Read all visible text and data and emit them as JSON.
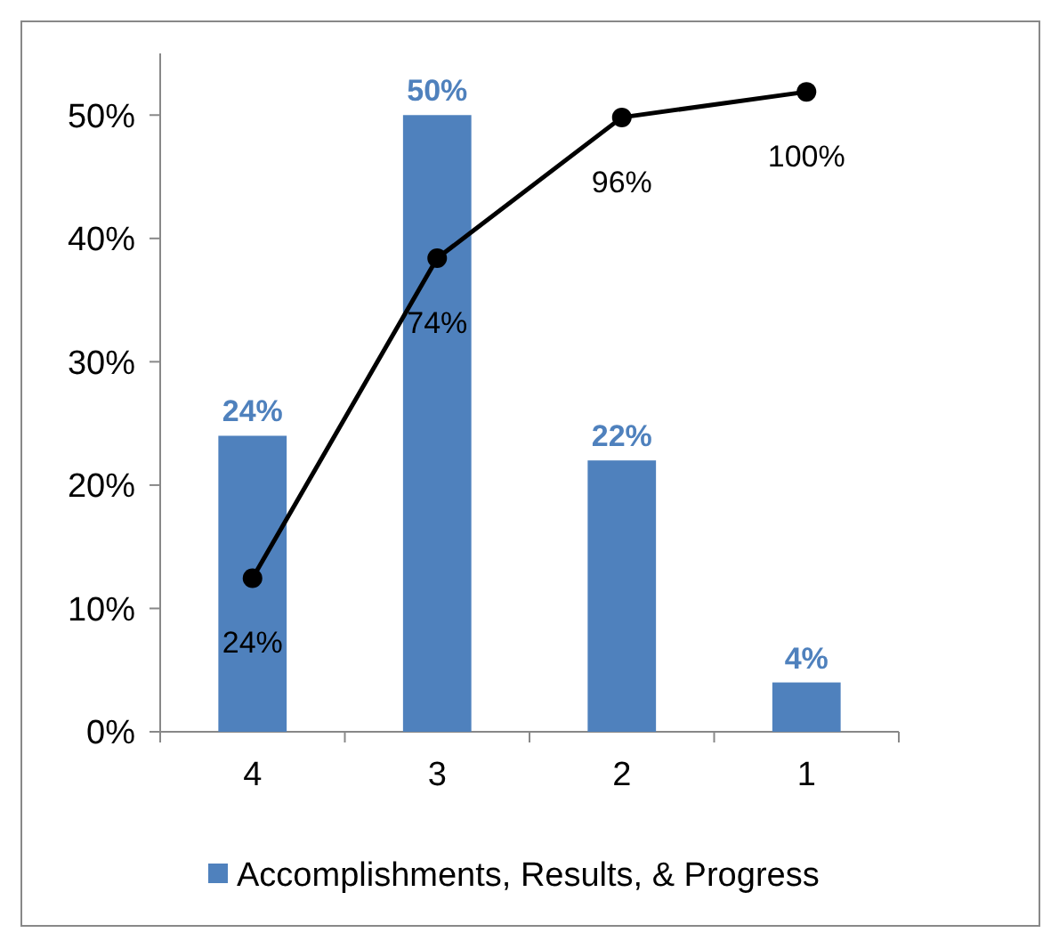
{
  "chart_data": {
    "type": "bar",
    "categories": [
      "4",
      "3",
      "2",
      "1"
    ],
    "series": [
      {
        "name": "Accomplishments, Results, & Progress",
        "color": "#4f81bd",
        "values": [
          24,
          50,
          22,
          4
        ],
        "value_labels": [
          "24%",
          "50%",
          "22%",
          "4%"
        ]
      },
      {
        "type": "line",
        "axis": "y2",
        "color": "#000000",
        "values": [
          24,
          74,
          96,
          100
        ],
        "value_labels": [
          "24%",
          "74%",
          "96%",
          "100%"
        ],
        "marker": "circle",
        "line_style": "solid"
      }
    ],
    "ylim": [
      0,
      55
    ],
    "yticks": [
      {
        "value": 0,
        "label": "0%"
      },
      {
        "value": 10,
        "label": "10%"
      },
      {
        "value": 20,
        "label": "20%"
      },
      {
        "value": 30,
        "label": "30%"
      },
      {
        "value": 40,
        "label": "40%"
      },
      {
        "value": 50,
        "label": "50%"
      }
    ],
    "y2lim": [
      0,
      106
    ],
    "tick_labels": "xy",
    "legend": "bottom",
    "grid": false
  }
}
